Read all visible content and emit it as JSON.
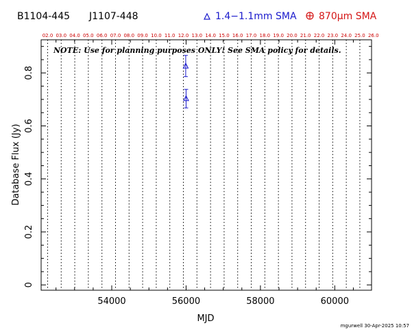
{
  "header": {
    "source_name": "B1104-445",
    "alt_name": "J1107-448",
    "legend": [
      {
        "symbol": "triangle-icon",
        "label": "1.4−1.1mm SMA",
        "color": "#1a1acc"
      },
      {
        "symbol": "circle-plus-icon",
        "label": "870μm SMA",
        "color": "#d41515"
      }
    ]
  },
  "note": "NOTE: Use for planning purposes ONLY!  See SMA policy for details.",
  "footer_stamp": "mgurwell 30-Apr-2025 10:57",
  "chart_data": {
    "type": "scatter",
    "xlabel": "MJD",
    "ylabel": "Database Flux (Jy)",
    "xlim": [
      52100,
      60990
    ],
    "ylim": [
      -0.02,
      0.925
    ],
    "xticks": [
      54000,
      56000,
      58000,
      60000
    ],
    "xtick_labels": [
      "54000",
      "56000",
      "58000",
      "60000"
    ],
    "yticks": [
      0,
      0.2,
      0.4,
      0.6,
      0.8
    ],
    "ytick_labels": [
      "0",
      "0.2",
      "0.4",
      "0.6",
      "0.8"
    ],
    "top_axis": {
      "label_format": "year",
      "ticks": [
        {
          "mjd": 52275,
          "label": "02.0"
        },
        {
          "mjd": 52640,
          "label": "03.0"
        },
        {
          "mjd": 53005,
          "label": "04.0"
        },
        {
          "mjd": 53370,
          "label": "05.0"
        },
        {
          "mjd": 53736,
          "label": "06.0"
        },
        {
          "mjd": 54101,
          "label": "07.0"
        },
        {
          "mjd": 54466,
          "label": "08.0"
        },
        {
          "mjd": 54831,
          "label": "09.0"
        },
        {
          "mjd": 55197,
          "label": "10.0"
        },
        {
          "mjd": 55562,
          "label": "11.0"
        },
        {
          "mjd": 55927,
          "label": "12.0"
        },
        {
          "mjd": 56292,
          "label": "13.0"
        },
        {
          "mjd": 56658,
          "label": "14.0"
        },
        {
          "mjd": 57023,
          "label": "15.0"
        },
        {
          "mjd": 57388,
          "label": "16.0"
        },
        {
          "mjd": 57753,
          "label": "17.0"
        },
        {
          "mjd": 58119,
          "label": "18.0"
        },
        {
          "mjd": 58484,
          "label": "19.0"
        },
        {
          "mjd": 58849,
          "label": "20.0"
        },
        {
          "mjd": 59214,
          "label": "21.0"
        },
        {
          "mjd": 59580,
          "label": "22.0"
        },
        {
          "mjd": 59945,
          "label": "23.0"
        },
        {
          "mjd": 60310,
          "label": "24.0"
        },
        {
          "mjd": 60675,
          "label": "25.0"
        },
        {
          "mjd": 61041,
          "label": "26.0"
        }
      ]
    },
    "grid": "dotted vertical lines at year boundaries",
    "series": [
      {
        "name": "1.4−1.1mm SMA",
        "marker": "triangle",
        "color": "#1a1acc",
        "points": [
          {
            "x": 55990,
            "y": 0.826,
            "err": 0.04
          },
          {
            "x": 56000,
            "y": 0.703,
            "err": 0.035
          }
        ]
      },
      {
        "name": "870μm SMA",
        "marker": "circle-plus",
        "color": "#d41515",
        "points": []
      }
    ]
  }
}
